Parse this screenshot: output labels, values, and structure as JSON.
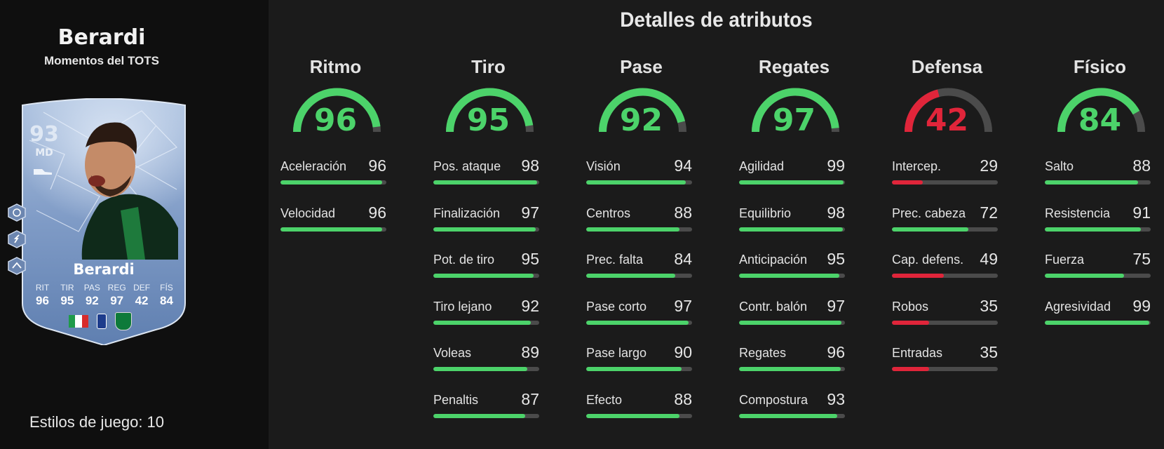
{
  "colors": {
    "high": "#4cd36a",
    "low": "#e0253a",
    "track": "#4b4b4b",
    "card_blue": "#7d9ac4"
  },
  "player": {
    "name": "Berardi",
    "subtitle": "Momentos del TOTS"
  },
  "card": {
    "rating": "93",
    "position": "MD",
    "name": "Berardi",
    "stats": [
      {
        "label": "RIT",
        "value": "96"
      },
      {
        "label": "TIR",
        "value": "95"
      },
      {
        "label": "PAS",
        "value": "92"
      },
      {
        "label": "REG",
        "value": "97"
      },
      {
        "label": "DEF",
        "value": "42"
      },
      {
        "label": "FÍS",
        "value": "84"
      }
    ],
    "icons": [
      "boot-icon",
      "italy-flag-icon",
      "serie-a-badge-icon",
      "sassuolo-crest-icon"
    ],
    "playstyle_icons": [
      "playstyle-finesse-icon",
      "playstyle-trivela-icon",
      "playstyle-incisive-pass-icon"
    ]
  },
  "playstyles_label": "Estilos de juego: 10",
  "title": "Detalles de atributos",
  "categories": [
    {
      "name": "Ritmo",
      "value": "96",
      "attributes": [
        {
          "label": "Aceleración",
          "value": "96"
        },
        {
          "label": "Velocidad",
          "value": "96"
        }
      ]
    },
    {
      "name": "Tiro",
      "value": "95",
      "attributes": [
        {
          "label": "Pos. ataque",
          "value": "98"
        },
        {
          "label": "Finalización",
          "value": "97"
        },
        {
          "label": "Pot. de tiro",
          "value": "95"
        },
        {
          "label": "Tiro lejano",
          "value": "92"
        },
        {
          "label": "Voleas",
          "value": "89"
        },
        {
          "label": "Penaltis",
          "value": "87"
        }
      ]
    },
    {
      "name": "Pase",
      "value": "92",
      "attributes": [
        {
          "label": "Visión",
          "value": "94"
        },
        {
          "label": "Centros",
          "value": "88"
        },
        {
          "label": "Prec. falta",
          "value": "84"
        },
        {
          "label": "Pase corto",
          "value": "97"
        },
        {
          "label": "Pase largo",
          "value": "90"
        },
        {
          "label": "Efecto",
          "value": "88"
        }
      ]
    },
    {
      "name": "Regates",
      "value": "97",
      "attributes": [
        {
          "label": "Agilidad",
          "value": "99"
        },
        {
          "label": "Equilibrio",
          "value": "98"
        },
        {
          "label": "Anticipación",
          "value": "95"
        },
        {
          "label": "Contr. balón",
          "value": "97"
        },
        {
          "label": "Regates",
          "value": "96"
        },
        {
          "label": "Compostura",
          "value": "93"
        }
      ]
    },
    {
      "name": "Defensa",
      "value": "42",
      "attributes": [
        {
          "label": "Intercep.",
          "value": "29"
        },
        {
          "label": "Prec. cabeza",
          "value": "72"
        },
        {
          "label": "Cap. defens.",
          "value": "49"
        },
        {
          "label": "Robos",
          "value": "35"
        },
        {
          "label": "Entradas",
          "value": "35"
        }
      ]
    },
    {
      "name": "Físico",
      "value": "84",
      "attributes": [
        {
          "label": "Salto",
          "value": "88"
        },
        {
          "label": "Resistencia",
          "value": "91"
        },
        {
          "label": "Fuerza",
          "value": "75"
        },
        {
          "label": "Agresividad",
          "value": "99"
        }
      ]
    }
  ]
}
